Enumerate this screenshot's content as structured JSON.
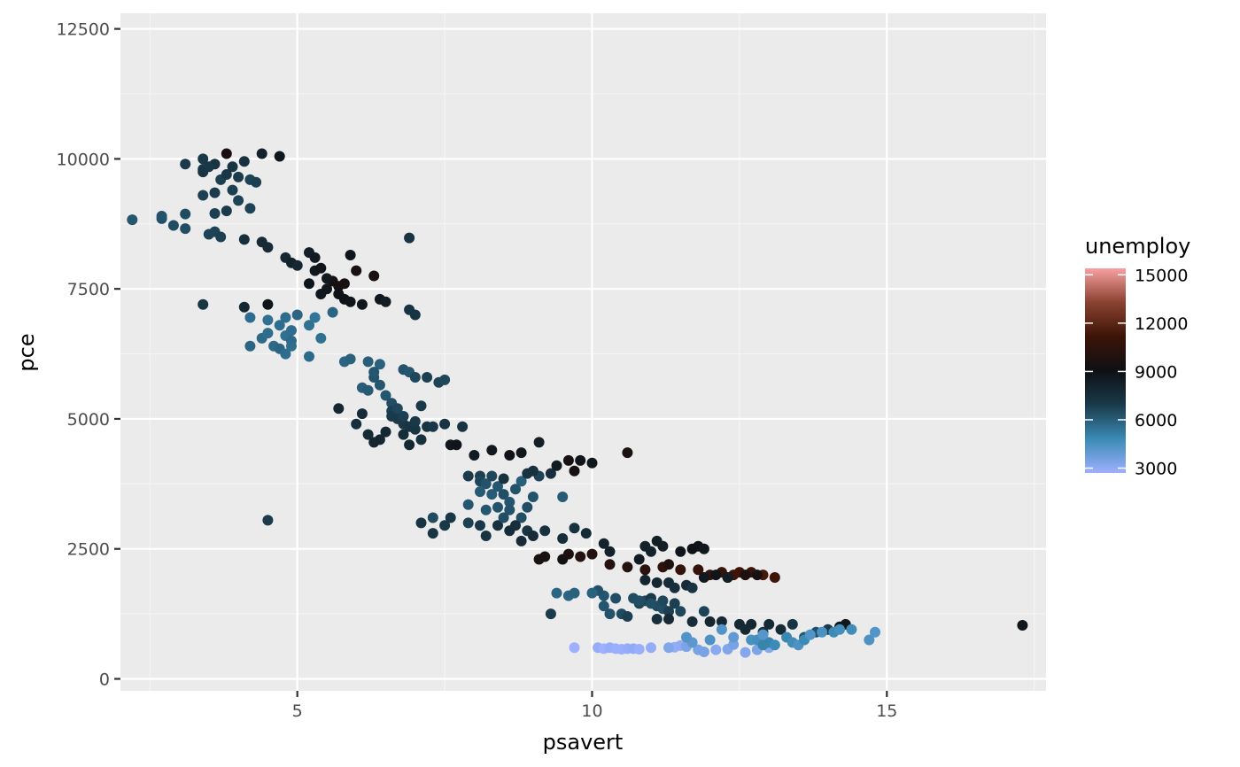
{
  "chart_data": {
    "type": "scatter",
    "xlabel": "psavert",
    "ylabel": "pce",
    "xlim": [
      2.0,
      17.7
    ],
    "ylim": [
      -230,
      12800
    ],
    "x_ticks": [
      5,
      10,
      15
    ],
    "x_tick_labels": [
      "5",
      "10",
      "15"
    ],
    "y_ticks": [
      0,
      2500,
      5000,
      7500,
      10000,
      12500
    ],
    "y_tick_labels": [
      "0",
      "2500",
      "5000",
      "7500",
      "10000",
      "12500"
    ],
    "grid": true,
    "legend": {
      "title": "unemploy",
      "placement": "right",
      "min": 2700,
      "max": 15400,
      "breaks": [
        3000,
        6000,
        9000,
        12000,
        15000
      ],
      "break_labels": [
        "3000",
        "6000",
        "9000",
        "12000",
        "15000"
      ]
    },
    "colors": {
      "panel_background": "#ebebeb",
      "grid_major": "#ffffff",
      "grid_minor": "#f5f5f5",
      "scale_stops": [
        "#9eb0ff",
        "#3a8bb5",
        "#1a3a4a",
        "#0e1014",
        "#3d1408",
        "#8a4230",
        "#f8a0a0"
      ]
    },
    "points": [
      [
        2.2,
        8830,
        6200
      ],
      [
        2.7,
        8850,
        6400
      ],
      [
        2.7,
        8900,
        6300
      ],
      [
        2.9,
        8720,
        6500
      ],
      [
        3.1,
        8660,
        6400
      ],
      [
        3.1,
        8940,
        6500
      ],
      [
        3.1,
        9900,
        6900
      ],
      [
        3.4,
        9800,
        7000
      ],
      [
        3.4,
        9750,
        7200
      ],
      [
        3.4,
        10000,
        7000
      ],
      [
        3.6,
        9350,
        6900
      ],
      [
        3.6,
        9900,
        7300
      ],
      [
        3.7,
        9600,
        6800
      ],
      [
        3.8,
        9700,
        7100
      ],
      [
        3.9,
        9400,
        6800
      ],
      [
        4.0,
        9200,
        6700
      ],
      [
        4.0,
        9650,
        6900
      ],
      [
        4.1,
        9950,
        7400
      ],
      [
        4.2,
        9600,
        6700
      ],
      [
        4.2,
        9050,
        6700
      ],
      [
        4.3,
        9550,
        6800
      ],
      [
        3.4,
        9300,
        6800
      ],
      [
        3.5,
        8550,
        6700
      ],
      [
        3.6,
        8600,
        6700
      ],
      [
        3.7,
        8500,
        6800
      ],
      [
        3.8,
        9000,
        6900
      ],
      [
        3.6,
        8950,
        6800
      ],
      [
        3.9,
        9850,
        7200
      ],
      [
        4.4,
        10100,
        8200
      ],
      [
        4.7,
        10050,
        8700
      ],
      [
        3.8,
        10100,
        9500
      ],
      [
        3.5,
        9850,
        7100
      ],
      [
        4.1,
        8450,
        7500
      ],
      [
        4.4,
        8400,
        7700
      ],
      [
        4.5,
        8300,
        7700
      ],
      [
        4.8,
        8100,
        7900
      ],
      [
        4.9,
        8000,
        8100
      ],
      [
        5.0,
        7950,
        7900
      ],
      [
        5.2,
        8200,
        8300
      ],
      [
        5.3,
        8100,
        8500
      ],
      [
        5.3,
        7850,
        8600
      ],
      [
        5.4,
        7900,
        8800
      ],
      [
        5.5,
        7500,
        8700
      ],
      [
        5.4,
        7400,
        8700
      ],
      [
        5.6,
        7650,
        9400
      ],
      [
        5.7,
        7550,
        9300
      ],
      [
        5.7,
        7400,
        8900
      ],
      [
        5.8,
        7300,
        9000
      ],
      [
        5.9,
        7250,
        8800
      ],
      [
        5.8,
        7600,
        9500
      ],
      [
        5.9,
        8150,
        8800
      ],
      [
        6.0,
        7850,
        9500
      ],
      [
        6.1,
        7200,
        8700
      ],
      [
        6.3,
        7750,
        9600
      ],
      [
        6.4,
        7300,
        8600
      ],
      [
        6.5,
        7250,
        8400
      ],
      [
        6.9,
        7100,
        7300
      ],
      [
        7.0,
        7000,
        7200
      ],
      [
        6.9,
        8480,
        7300
      ],
      [
        5.5,
        7700,
        8600
      ],
      [
        5.2,
        7600,
        8800
      ],
      [
        4.5,
        7200,
        8800
      ],
      [
        4.1,
        7150,
        7900
      ],
      [
        3.4,
        7200,
        7200
      ],
      [
        4.2,
        6950,
        5600
      ],
      [
        4.2,
        6400,
        5800
      ],
      [
        4.4,
        6550,
        5700
      ],
      [
        4.5,
        6650,
        5600
      ],
      [
        4.5,
        6900,
        5500
      ],
      [
        4.6,
        6400,
        5700
      ],
      [
        4.7,
        6350,
        5800
      ],
      [
        4.8,
        6600,
        5500
      ],
      [
        4.8,
        6250,
        5600
      ],
      [
        4.9,
        6700,
        5600
      ],
      [
        4.8,
        6950,
        5600
      ],
      [
        5.0,
        7000,
        5800
      ],
      [
        5.2,
        6800,
        5500
      ],
      [
        5.3,
        6950,
        5400
      ],
      [
        5.4,
        6550,
        5500
      ],
      [
        5.6,
        7050,
        5800
      ],
      [
        5.2,
        6200,
        5700
      ],
      [
        4.9,
        6500,
        5700
      ],
      [
        4.7,
        6800,
        5600
      ],
      [
        4.9,
        6400,
        5600
      ],
      [
        5.8,
        6100,
        5800
      ],
      [
        5.9,
        6150,
        5900
      ],
      [
        6.1,
        5600,
        6000
      ],
      [
        6.2,
        5550,
        6100
      ],
      [
        6.3,
        5800,
        6300
      ],
      [
        6.2,
        6100,
        6000
      ],
      [
        6.4,
        6050,
        5900
      ],
      [
        6.3,
        5900,
        6200
      ],
      [
        6.4,
        5650,
        6200
      ],
      [
        6.5,
        5450,
        6200
      ],
      [
        6.6,
        5300,
        6400
      ],
      [
        6.8,
        5950,
        6300
      ],
      [
        6.9,
        5900,
        6200
      ],
      [
        7.0,
        5800,
        6600
      ],
      [
        7.2,
        5800,
        6800
      ],
      [
        7.4,
        5700,
        6700
      ],
      [
        7.5,
        5750,
        6600
      ],
      [
        6.6,
        5150,
        6800
      ],
      [
        6.7,
        5000,
        6900
      ],
      [
        6.8,
        4900,
        7100
      ],
      [
        6.8,
        5050,
        6800
      ],
      [
        6.9,
        4850,
        7200
      ],
      [
        7.0,
        4800,
        7200
      ],
      [
        7.0,
        4950,
        7000
      ],
      [
        7.1,
        5250,
        7000
      ],
      [
        7.1,
        4600,
        7400
      ],
      [
        7.2,
        4850,
        7300
      ],
      [
        7.3,
        4850,
        7100
      ],
      [
        7.5,
        4900,
        7300
      ],
      [
        7.6,
        4500,
        8600
      ],
      [
        7.7,
        4500,
        8800
      ],
      [
        7.8,
        4850,
        7300
      ],
      [
        6.4,
        4600,
        7900
      ],
      [
        6.3,
        4550,
        8000
      ],
      [
        6.2,
        4700,
        7700
      ],
      [
        6.0,
        4900,
        7500
      ],
      [
        6.1,
        5100,
        7600
      ],
      [
        5.7,
        5200,
        7900
      ],
      [
        6.5,
        4750,
        7800
      ],
      [
        6.8,
        4700,
        7600
      ],
      [
        6.9,
        4500,
        7900
      ],
      [
        6.6,
        5050,
        6900
      ],
      [
        6.7,
        5200,
        6600
      ],
      [
        7.9,
        3900,
        6900
      ],
      [
        8.0,
        4300,
        8500
      ],
      [
        8.1,
        3900,
        6800
      ],
      [
        8.1,
        3800,
        6600
      ],
      [
        8.2,
        3750,
        6300
      ],
      [
        8.3,
        3900,
        6600
      ],
      [
        8.3,
        3550,
        6100
      ],
      [
        8.4,
        3700,
        6200
      ],
      [
        8.4,
        3300,
        6300
      ],
      [
        8.5,
        3550,
        6400
      ],
      [
        8.6,
        3400,
        6200
      ],
      [
        8.7,
        3650,
        6300
      ],
      [
        8.8,
        3800,
        6000
      ],
      [
        8.8,
        3100,
        6400
      ],
      [
        8.9,
        3300,
        6400
      ],
      [
        9.0,
        3500,
        6300
      ],
      [
        9.1,
        3900,
        6700
      ],
      [
        8.3,
        4400,
        8600
      ],
      [
        8.5,
        3850,
        7400
      ],
      [
        8.6,
        4300,
        8900
      ],
      [
        8.8,
        4350,
        8700
      ],
      [
        8.9,
        3950,
        7300
      ],
      [
        9.0,
        4000,
        7400
      ],
      [
        9.1,
        4550,
        8300
      ],
      [
        9.3,
        3950,
        7500
      ],
      [
        9.4,
        4100,
        8500
      ],
      [
        9.5,
        3500,
        6100
      ],
      [
        9.6,
        4200,
        9400
      ],
      [
        9.7,
        4000,
        9500
      ],
      [
        9.8,
        4200,
        8800
      ],
      [
        10.0,
        4150,
        8700
      ],
      [
        10.6,
        4350,
        9600
      ],
      [
        7.6,
        3100,
        7100
      ],
      [
        7.5,
        2950,
        7000
      ],
      [
        7.3,
        3100,
        6500
      ],
      [
        7.9,
        3000,
        6800
      ],
      [
        8.1,
        2950,
        7000
      ],
      [
        8.2,
        2750,
        7300
      ],
      [
        8.4,
        2950,
        7400
      ],
      [
        8.6,
        2850,
        7600
      ],
      [
        8.7,
        2950,
        7500
      ],
      [
        8.8,
        2650,
        7600
      ],
      [
        8.9,
        2850,
        7300
      ],
      [
        9.0,
        2750,
        7700
      ],
      [
        9.2,
        2850,
        7400
      ],
      [
        9.5,
        2700,
        7600
      ],
      [
        9.7,
        2900,
        7400
      ],
      [
        9.9,
        2800,
        7700
      ],
      [
        7.3,
        2800,
        7200
      ],
      [
        7.1,
        3000,
        7300
      ],
      [
        8.5,
        3100,
        6400
      ],
      [
        8.6,
        3250,
        6300
      ],
      [
        8.2,
        3250,
        6200
      ],
      [
        8.1,
        3600,
        6100
      ],
      [
        7.9,
        3350,
        6200
      ],
      [
        4.5,
        3050,
        6900
      ],
      [
        9.1,
        2300,
        9600
      ],
      [
        9.2,
        2350,
        9500
      ],
      [
        9.5,
        2300,
        9300
      ],
      [
        9.6,
        2400,
        9700
      ],
      [
        9.8,
        2350,
        10000
      ],
      [
        10.0,
        2400,
        9900
      ],
      [
        10.3,
        2200,
        10100
      ],
      [
        10.6,
        2150,
        10000
      ],
      [
        10.9,
        2100,
        10300
      ],
      [
        11.2,
        2150,
        10500
      ],
      [
        11.5,
        2100,
        10700
      ],
      [
        11.8,
        2100,
        10800
      ],
      [
        12.0,
        2000,
        11000
      ],
      [
        12.2,
        2050,
        10900
      ],
      [
        12.4,
        2000,
        11100
      ],
      [
        12.5,
        2050,
        11200
      ],
      [
        12.7,
        2050,
        11000
      ],
      [
        12.9,
        2000,
        11400
      ],
      [
        13.1,
        1950,
        11200
      ],
      [
        12.6,
        2000,
        9700
      ],
      [
        12.8,
        2000,
        9500
      ],
      [
        12.3,
        1950,
        8800
      ],
      [
        11.5,
        2450,
        8800
      ],
      [
        11.7,
        2500,
        8900
      ],
      [
        11.8,
        2550,
        8900
      ],
      [
        11.9,
        2500,
        8700
      ],
      [
        11.1,
        2650,
        8300
      ],
      [
        11.2,
        2550,
        8400
      ],
      [
        10.9,
        2550,
        8200
      ],
      [
        10.8,
        2300,
        8500
      ],
      [
        10.3,
        2450,
        8200
      ],
      [
        10.2,
        2600,
        8100
      ],
      [
        11.0,
        2450,
        8100
      ],
      [
        11.3,
        2200,
        9800
      ],
      [
        10.9,
        1900,
        8000
      ],
      [
        11.1,
        1850,
        7900
      ],
      [
        11.3,
        1850,
        7600
      ],
      [
        11.4,
        1750,
        7500
      ],
      [
        11.6,
        1800,
        7700
      ],
      [
        11.7,
        1750,
        7300
      ],
      [
        11.9,
        1950,
        8600
      ],
      [
        12.1,
        2000,
        8800
      ],
      [
        12.3,
        1950,
        8400
      ],
      [
        10.7,
        1550,
        6500
      ],
      [
        10.8,
        1450,
        6700
      ],
      [
        10.9,
        1500,
        6600
      ],
      [
        11.0,
        1550,
        7000
      ],
      [
        11.1,
        1400,
        6500
      ],
      [
        11.2,
        1350,
        6400
      ],
      [
        11.3,
        1300,
        6800
      ],
      [
        11.4,
        1450,
        6800
      ],
      [
        11.5,
        1300,
        6600
      ],
      [
        10.2,
        1600,
        6200
      ],
      [
        10.1,
        1700,
        6300
      ],
      [
        10.4,
        1550,
        6400
      ],
      [
        10.2,
        1400,
        6200
      ],
      [
        10.3,
        1250,
        6300
      ],
      [
        10.5,
        1250,
        6500
      ],
      [
        10.6,
        1200,
        6800
      ],
      [
        9.6,
        1600,
        5800
      ],
      [
        9.7,
        1650,
        5900
      ],
      [
        9.4,
        1650,
        5800
      ],
      [
        9.3,
        1250,
        6900
      ],
      [
        10.0,
        1650,
        5900
      ],
      [
        11.1,
        1150,
        7500
      ],
      [
        11.3,
        1150,
        7700
      ],
      [
        11.7,
        1100,
        7600
      ],
      [
        12.0,
        1100,
        7900
      ],
      [
        12.2,
        1100,
        7800
      ],
      [
        12.5,
        1050,
        7800
      ],
      [
        12.7,
        1050,
        7900
      ],
      [
        12.6,
        950,
        7800
      ],
      [
        12.9,
        900,
        7400
      ],
      [
        13.0,
        1050,
        7800
      ],
      [
        13.2,
        950,
        7700
      ],
      [
        13.4,
        1050,
        7200
      ],
      [
        13.6,
        800,
        6300
      ],
      [
        13.8,
        900,
        6400
      ],
      [
        14.0,
        950,
        6900
      ],
      [
        14.2,
        1000,
        8800
      ],
      [
        14.3,
        1050,
        8700
      ],
      [
        11.9,
        1300,
        6700
      ],
      [
        11.2,
        1500,
        6600
      ],
      [
        10.8,
        1500,
        6400
      ],
      [
        11.0,
        1450,
        6400
      ],
      [
        9.7,
        600,
        2700
      ],
      [
        10.1,
        600,
        2900
      ],
      [
        10.2,
        580,
        2700
      ],
      [
        10.3,
        600,
        2900
      ],
      [
        10.5,
        570,
        2800
      ],
      [
        10.6,
        580,
        2900
      ],
      [
        10.7,
        580,
        3000
      ],
      [
        10.8,
        570,
        2800
      ],
      [
        11.0,
        600,
        2900
      ],
      [
        11.4,
        610,
        2900
      ],
      [
        11.5,
        640,
        3000
      ],
      [
        11.6,
        620,
        3400
      ],
      [
        11.8,
        560,
        3500
      ],
      [
        11.9,
        520,
        3500
      ],
      [
        12.1,
        560,
        3100
      ],
      [
        12.3,
        570,
        3300
      ],
      [
        12.4,
        660,
        3500
      ],
      [
        12.6,
        510,
        3200
      ],
      [
        12.8,
        560,
        3400
      ],
      [
        13.0,
        600,
        3200
      ],
      [
        12.2,
        950,
        4300
      ],
      [
        12.4,
        800,
        4000
      ],
      [
        12.7,
        750,
        4500
      ],
      [
        12.8,
        750,
        4600
      ],
      [
        12.9,
        650,
        5000
      ],
      [
        13.0,
        700,
        5000
      ],
      [
        13.1,
        650,
        4800
      ],
      [
        13.3,
        800,
        4900
      ],
      [
        13.4,
        700,
        4700
      ],
      [
        13.5,
        650,
        4400
      ],
      [
        13.6,
        750,
        4800
      ],
      [
        13.7,
        850,
        4300
      ],
      [
        13.9,
        900,
        4500
      ],
      [
        14.1,
        900,
        4800
      ],
      [
        14.2,
        950,
        4600
      ],
      [
        14.4,
        950,
        4700
      ],
      [
        14.7,
        750,
        4400
      ],
      [
        14.8,
        900,
        4300
      ],
      [
        12.0,
        750,
        4400
      ],
      [
        11.7,
        700,
        4100
      ],
      [
        11.6,
        800,
        4300
      ],
      [
        12.9,
        850,
        4200
      ],
      [
        17.3,
        1030,
        8700
      ],
      [
        11.3,
        600,
        3300
      ],
      [
        10.4,
        580,
        2800
      ]
    ]
  }
}
